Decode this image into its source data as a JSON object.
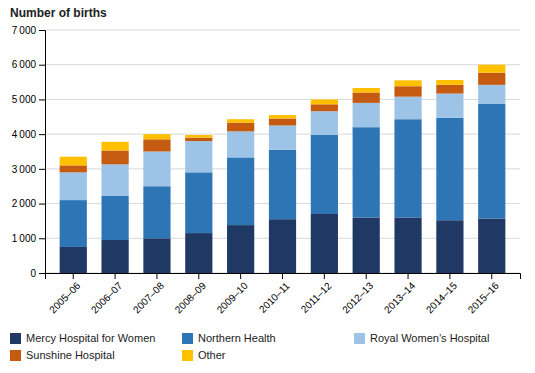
{
  "chart_data": {
    "type": "bar",
    "stacked": true,
    "title": "Number of births",
    "categories": [
      "2005–06",
      "2006–07",
      "2007–08",
      "2008–09",
      "2009–10",
      "2010–11",
      "2011–12",
      "2012–13",
      "2013–14",
      "2014–15",
      "2015–16"
    ],
    "series": [
      {
        "name": "Mercy Hospital for Women",
        "color": "#1f3864",
        "values": [
          750,
          950,
          1000,
          1150,
          1380,
          1550,
          1700,
          1600,
          1600,
          1520,
          1570
        ]
      },
      {
        "name": "Northern Health",
        "color": "#2e75b6",
        "values": [
          1350,
          1280,
          1500,
          1750,
          1950,
          2000,
          2280,
          2600,
          2830,
          2950,
          3300
        ]
      },
      {
        "name": "Royal Women’s Hospital",
        "color": "#9dc3e6",
        "values": [
          800,
          900,
          1000,
          900,
          750,
          700,
          680,
          700,
          650,
          700,
          550
        ]
      },
      {
        "name": "Sunshine Hospital",
        "color": "#c55a11",
        "values": [
          200,
          400,
          350,
          100,
          250,
          200,
          200,
          300,
          300,
          250,
          350
        ]
      },
      {
        "name": "Other",
        "color": "#ffc000",
        "values": [
          250,
          250,
          150,
          75,
          100,
          100,
          140,
          130,
          170,
          140,
          230
        ]
      }
    ],
    "ylim": [
      0,
      7000
    ],
    "yticks": [
      0,
      {
        "value": 1000,
        "label": "1 000"
      },
      {
        "value": 2000,
        "label": "2 000"
      },
      {
        "value": 3000,
        "label": "3 000"
      },
      {
        "value": 4000,
        "label": "4 000"
      },
      {
        "value": 5000,
        "label": "5 000"
      },
      {
        "value": 6000,
        "label": "6 000"
      },
      {
        "value": 7000,
        "label": "7 000"
      }
    ],
    "grid": true,
    "legend": "bottom"
  }
}
